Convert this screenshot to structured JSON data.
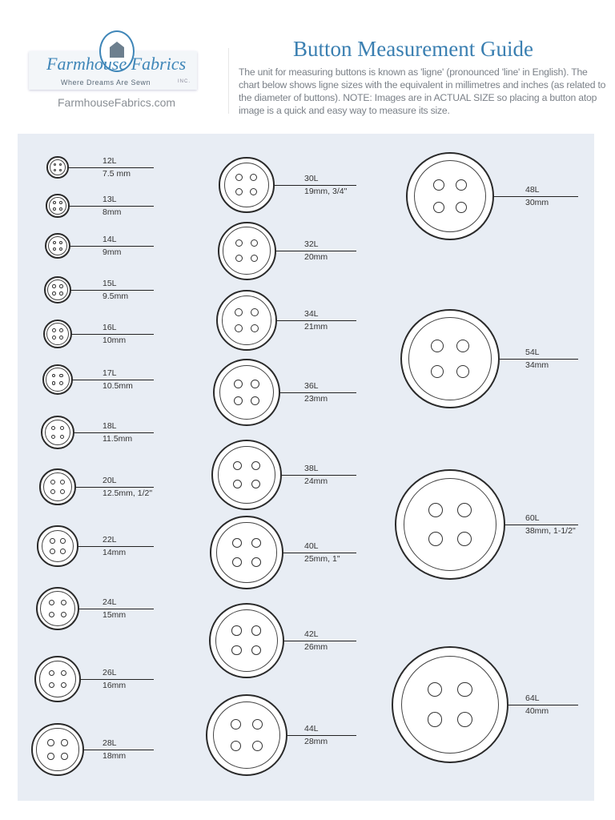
{
  "header": {
    "logo_text": "Farmhouse Fabrics",
    "logo_tagline": "Where Dreams Are Sewn",
    "logo_inc": "INC.",
    "website": "FarmhouseFabrics.com",
    "title": "Button Measurement Guide",
    "description": "The unit for measuring buttons is known as 'ligne' (pronounced 'line' in English). The chart below shows ligne sizes with the equivalent in millimetres and inches (as related to the diameter of buttons). NOTE: Images are in ACTUAL SIZE so placing a button atop image is a quick and easy way to measure its size."
  },
  "buttons": [
    {
      "ligne": "12L",
      "size": "7.5 mm",
      "mm": 7.5
    },
    {
      "ligne": "13L",
      "size": "8mm",
      "mm": 8
    },
    {
      "ligne": "14L",
      "size": "9mm",
      "mm": 9
    },
    {
      "ligne": "15L",
      "size": "9.5mm",
      "mm": 9.5
    },
    {
      "ligne": "16L",
      "size": "10mm",
      "mm": 10
    },
    {
      "ligne": "17L",
      "size": "10.5mm",
      "mm": 10.5
    },
    {
      "ligne": "18L",
      "size": "11.5mm",
      "mm": 11.5
    },
    {
      "ligne": "20L",
      "size": "12.5mm, 1/2\"",
      "mm": 12.5
    },
    {
      "ligne": "22L",
      "size": "14mm",
      "mm": 14
    },
    {
      "ligne": "24L",
      "size": "15mm",
      "mm": 15
    },
    {
      "ligne": "26L",
      "size": "16mm",
      "mm": 16
    },
    {
      "ligne": "28L",
      "size": "18mm",
      "mm": 18
    },
    {
      "ligne": "30L",
      "size": "19mm, 3/4\"",
      "mm": 19
    },
    {
      "ligne": "32L",
      "size": "20mm",
      "mm": 20
    },
    {
      "ligne": "34L",
      "size": "21mm",
      "mm": 21
    },
    {
      "ligne": "36L",
      "size": "23mm",
      "mm": 23
    },
    {
      "ligne": "38L",
      "size": "24mm",
      "mm": 24
    },
    {
      "ligne": "40L",
      "size": "25mm, 1\"",
      "mm": 25
    },
    {
      "ligne": "42L",
      "size": "26mm",
      "mm": 26
    },
    {
      "ligne": "44L",
      "size": "28mm",
      "mm": 28
    },
    {
      "ligne": "48L",
      "size": "30mm",
      "mm": 30
    },
    {
      "ligne": "54L",
      "size": "34mm",
      "mm": 34
    },
    {
      "ligne": "60L",
      "size": "38mm, 1-1/2\"",
      "mm": 38
    },
    {
      "ligne": "64L",
      "size": "40mm",
      "mm": 40
    }
  ]
}
